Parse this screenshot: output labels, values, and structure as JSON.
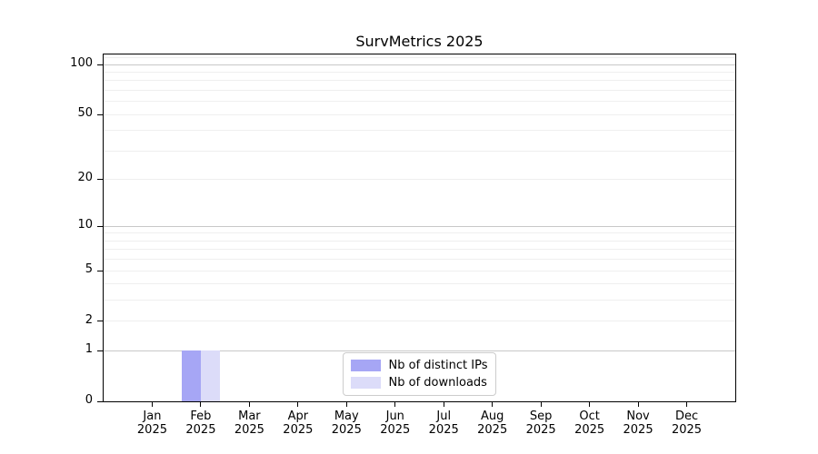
{
  "chart_data": {
    "type": "bar",
    "title": "SurvMetrics 2025",
    "xlabel": "",
    "ylabel": "",
    "categories": [
      {
        "month": "Jan",
        "year": "2025"
      },
      {
        "month": "Feb",
        "year": "2025"
      },
      {
        "month": "Mar",
        "year": "2025"
      },
      {
        "month": "Apr",
        "year": "2025"
      },
      {
        "month": "May",
        "year": "2025"
      },
      {
        "month": "Jun",
        "year": "2025"
      },
      {
        "month": "Jul",
        "year": "2025"
      },
      {
        "month": "Aug",
        "year": "2025"
      },
      {
        "month": "Sep",
        "year": "2025"
      },
      {
        "month": "Oct",
        "year": "2025"
      },
      {
        "month": "Nov",
        "year": "2025"
      },
      {
        "month": "Dec",
        "year": "2025"
      }
    ],
    "series": [
      {
        "name": "Nb of distinct IPs",
        "color": "#a6a6f5",
        "values": [
          0,
          1,
          0,
          0,
          0,
          0,
          0,
          0,
          0,
          0,
          0,
          0
        ]
      },
      {
        "name": "Nb of downloads",
        "color": "#dcdcf9",
        "values": [
          0,
          1,
          0,
          0,
          0,
          0,
          0,
          0,
          0,
          0,
          0,
          0
        ]
      }
    ],
    "yaxis": {
      "scale": "log1p",
      "ylim": [
        0,
        115
      ],
      "tick_values": [
        0,
        1,
        2,
        5,
        10,
        20,
        50,
        100
      ],
      "tick_labels": [
        "0",
        "1",
        "2",
        "5",
        "10",
        "20",
        "50",
        "100"
      ],
      "major_grid_values": [
        1,
        10,
        100
      ],
      "minor_grid_values": [
        2,
        3,
        4,
        5,
        6,
        7,
        8,
        9,
        20,
        30,
        40,
        50,
        60,
        70,
        80,
        90,
        110
      ]
    },
    "legend": {
      "position": "lower center"
    },
    "grid": true,
    "bar_width_category_units": 0.4
  },
  "colors": {
    "major_grid": "#c8c8c8",
    "minor_grid": "#efefef",
    "axis": "#000000",
    "background": "#ffffff"
  }
}
